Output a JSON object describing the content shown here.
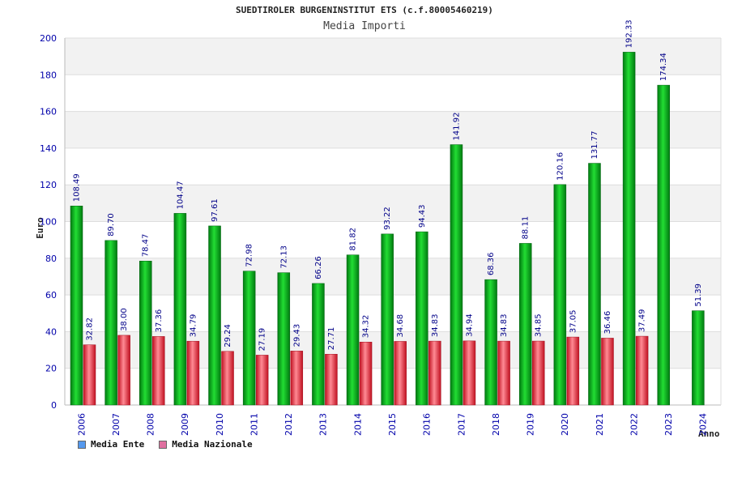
{
  "chart_data": {
    "type": "bar",
    "title": "SUEDTIROLER BURGENINSTITUT ETS (c.f.80005460219)",
    "subtitle": "Media Importi",
    "ylabel": "Euro",
    "xlabel": "Anno",
    "ylim": [
      0,
      200
    ],
    "yticks": [
      0,
      20,
      40,
      60,
      80,
      100,
      120,
      140,
      160,
      180,
      200
    ],
    "categories": [
      "2006",
      "2007",
      "2008",
      "2009",
      "2010",
      "2011",
      "2012",
      "2013",
      "2014",
      "2015",
      "2016",
      "2017",
      "2018",
      "2019",
      "2020",
      "2021",
      "2022",
      "2023",
      "2024"
    ],
    "series": [
      {
        "name": "Media Ente",
        "color": "#00b020",
        "values": [
          108.49,
          89.7,
          78.47,
          104.47,
          97.61,
          72.98,
          72.13,
          66.26,
          81.82,
          93.22,
          94.43,
          141.92,
          68.36,
          88.11,
          120.16,
          131.77,
          192.33,
          174.34,
          51.39
        ],
        "labels": [
          "108.49",
          "89.70",
          "78.47",
          "104.47",
          "97.61",
          "72.98",
          "72.13",
          "66.26",
          "81.82",
          "93.22",
          "94.43",
          "141.92",
          "68.36",
          "88.11",
          "120.16",
          "131.77",
          "192.33",
          "174.34",
          "51.39"
        ]
      },
      {
        "name": "Media Nazionale",
        "color": "#e83040",
        "values": [
          32.82,
          38.0,
          37.36,
          34.79,
          29.24,
          27.19,
          29.43,
          27.71,
          34.32,
          34.68,
          34.83,
          34.94,
          34.83,
          34.85,
          37.05,
          36.46,
          37.49,
          null,
          null
        ],
        "labels": [
          "32.82",
          "38.00",
          "37.36",
          "34.79",
          "29.24",
          "27.19",
          "29.43",
          "27.71",
          "34.32",
          "34.68",
          "34.83",
          "34.94",
          "34.83",
          "34.85",
          "37.05",
          "36.46",
          "37.49",
          null,
          null
        ]
      }
    ],
    "legend": {
      "position": "bottom-left",
      "items": [
        {
          "label": "Media Ente",
          "color": "#5599ee"
        },
        {
          "label": "Media Nazionale",
          "color": "#e070a0"
        }
      ]
    },
    "grid": true,
    "band_colors": [
      "#f2f2f2",
      "#ffffff"
    ]
  }
}
